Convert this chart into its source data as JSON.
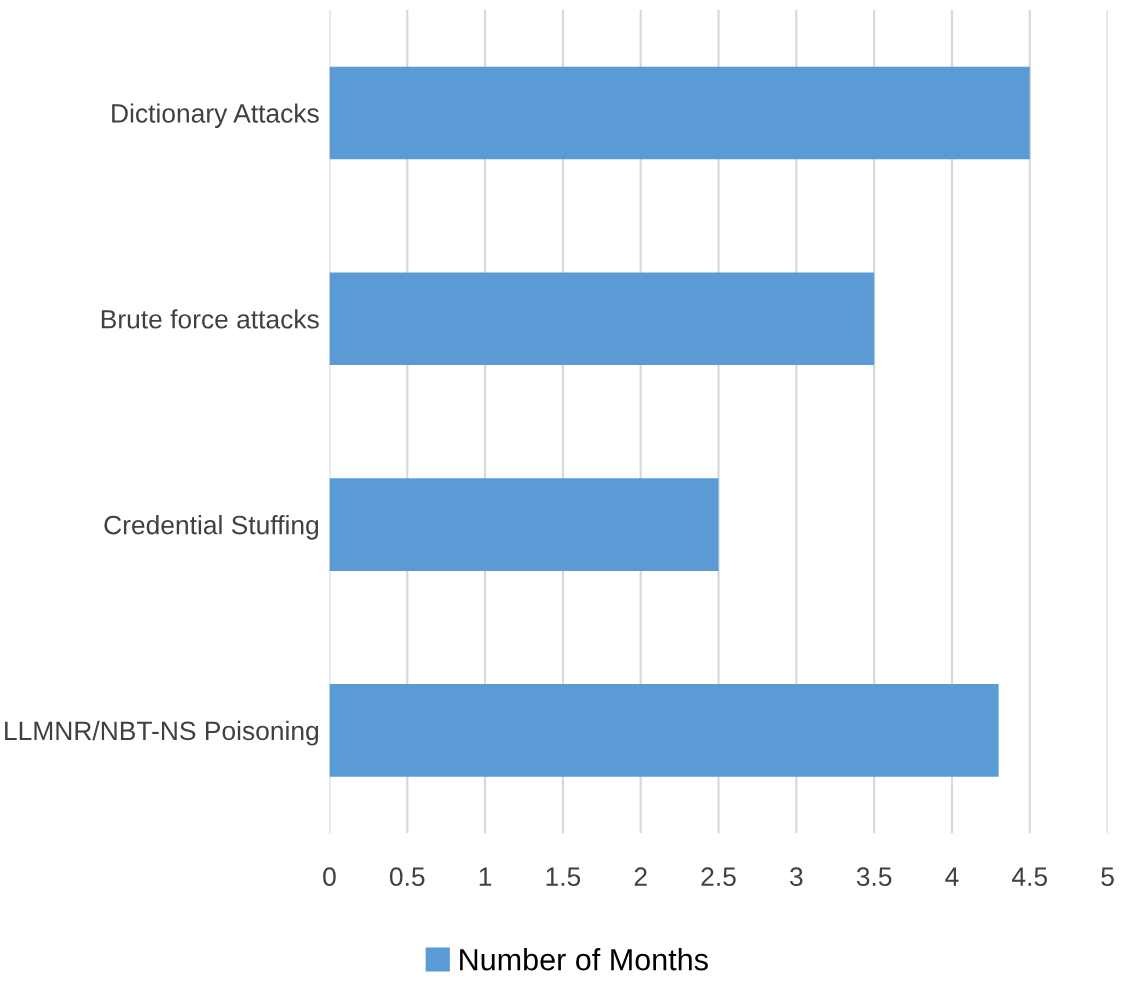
{
  "chart_data": {
    "type": "bar",
    "orientation": "horizontal",
    "categories": [
      "Dictionary Attacks",
      "Brute force attacks",
      "Credential Stuffing",
      "LLMNR/NBT-NS Poisoning"
    ],
    "series": [
      {
        "name": "Number of Months",
        "color": "#5b9bd5",
        "values": [
          4.5,
          3.5,
          2.5,
          4.3
        ]
      }
    ],
    "xlim": [
      0,
      5
    ],
    "xticks": [
      0,
      0.5,
      1,
      1.5,
      2,
      2.5,
      3,
      3.5,
      4,
      4.5,
      5
    ],
    "grid": "x",
    "legend": "bottom"
  }
}
